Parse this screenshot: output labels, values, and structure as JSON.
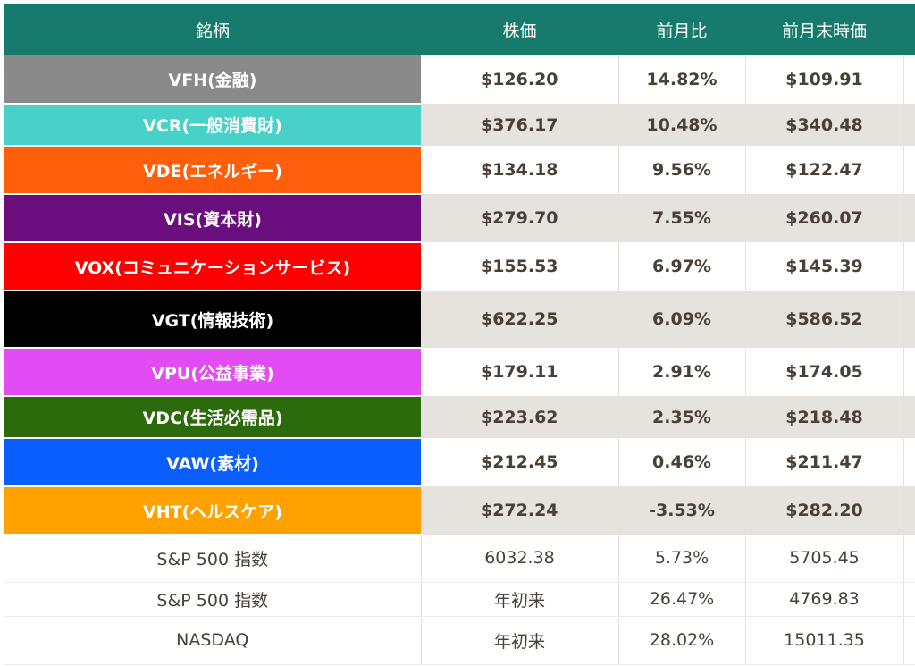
{
  "table": {
    "headers": [
      "銘柄",
      "株価",
      "前月比",
      "前月末時価"
    ],
    "sector_rows": [
      {
        "name": "VFH(金融)",
        "color": "#8a8a8a",
        "price": "$126.20",
        "change": "14.82%",
        "prev": "$109.91",
        "band": false
      },
      {
        "name": "VCR(一般消費財)",
        "color": "#48d1c8",
        "price": "$376.17",
        "change": "10.48%",
        "prev": "$340.48",
        "band": true
      },
      {
        "name": "VDE(エネルギー)",
        "color": "#ff5f0a",
        "price": "$134.18",
        "change": "9.56%",
        "prev": "$122.47",
        "band": false
      },
      {
        "name": "VIS(資本財)",
        "color": "#6a0e7d",
        "price": "$279.70",
        "change": "7.55%",
        "prev": "$260.07",
        "band": true
      },
      {
        "name": "VOX(コミュニケーションサービス)",
        "color": "#ff0000",
        "price": "$155.53",
        "change": "6.97%",
        "prev": "$145.39",
        "band": false
      },
      {
        "name": "VGT(情報技術)",
        "color": "#000000",
        "price": "$622.25",
        "change": "6.09%",
        "prev": "$586.52",
        "band": true
      },
      {
        "name": "VPU(公益事業)",
        "color": "#e34bf5",
        "price": "$179.11",
        "change": "2.91%",
        "prev": "$174.05",
        "band": false
      },
      {
        "name": "VDC(生活必需品)",
        "color": "#2c6b0c",
        "price": "$223.62",
        "change": "2.35%",
        "prev": "$218.48",
        "band": true
      },
      {
        "name": "VAW(素材)",
        "color": "#0a5dff",
        "price": "$212.45",
        "change": "0.46%",
        "prev": "$211.47",
        "band": false
      },
      {
        "name": "VHT(ヘルスケア)",
        "color": "#ffa200",
        "price": "$272.24",
        "change": "-3.53%",
        "prev": "$282.20",
        "band": true
      }
    ],
    "index_rows": [
      {
        "name": "S&P 500 指数",
        "price": "6032.38",
        "change": "5.73%",
        "prev": "5705.45"
      },
      {
        "name": "S&P 500 指数",
        "price": "年初来",
        "change": "26.47%",
        "prev": "4769.83"
      },
      {
        "name": "NASDAQ",
        "price": "年初来",
        "change": "28.02%",
        "prev": "15011.35"
      }
    ]
  },
  "colors": {
    "header_bg": "#167a6c",
    "band_bg": "#e6e3de",
    "text": "#4a4038"
  }
}
